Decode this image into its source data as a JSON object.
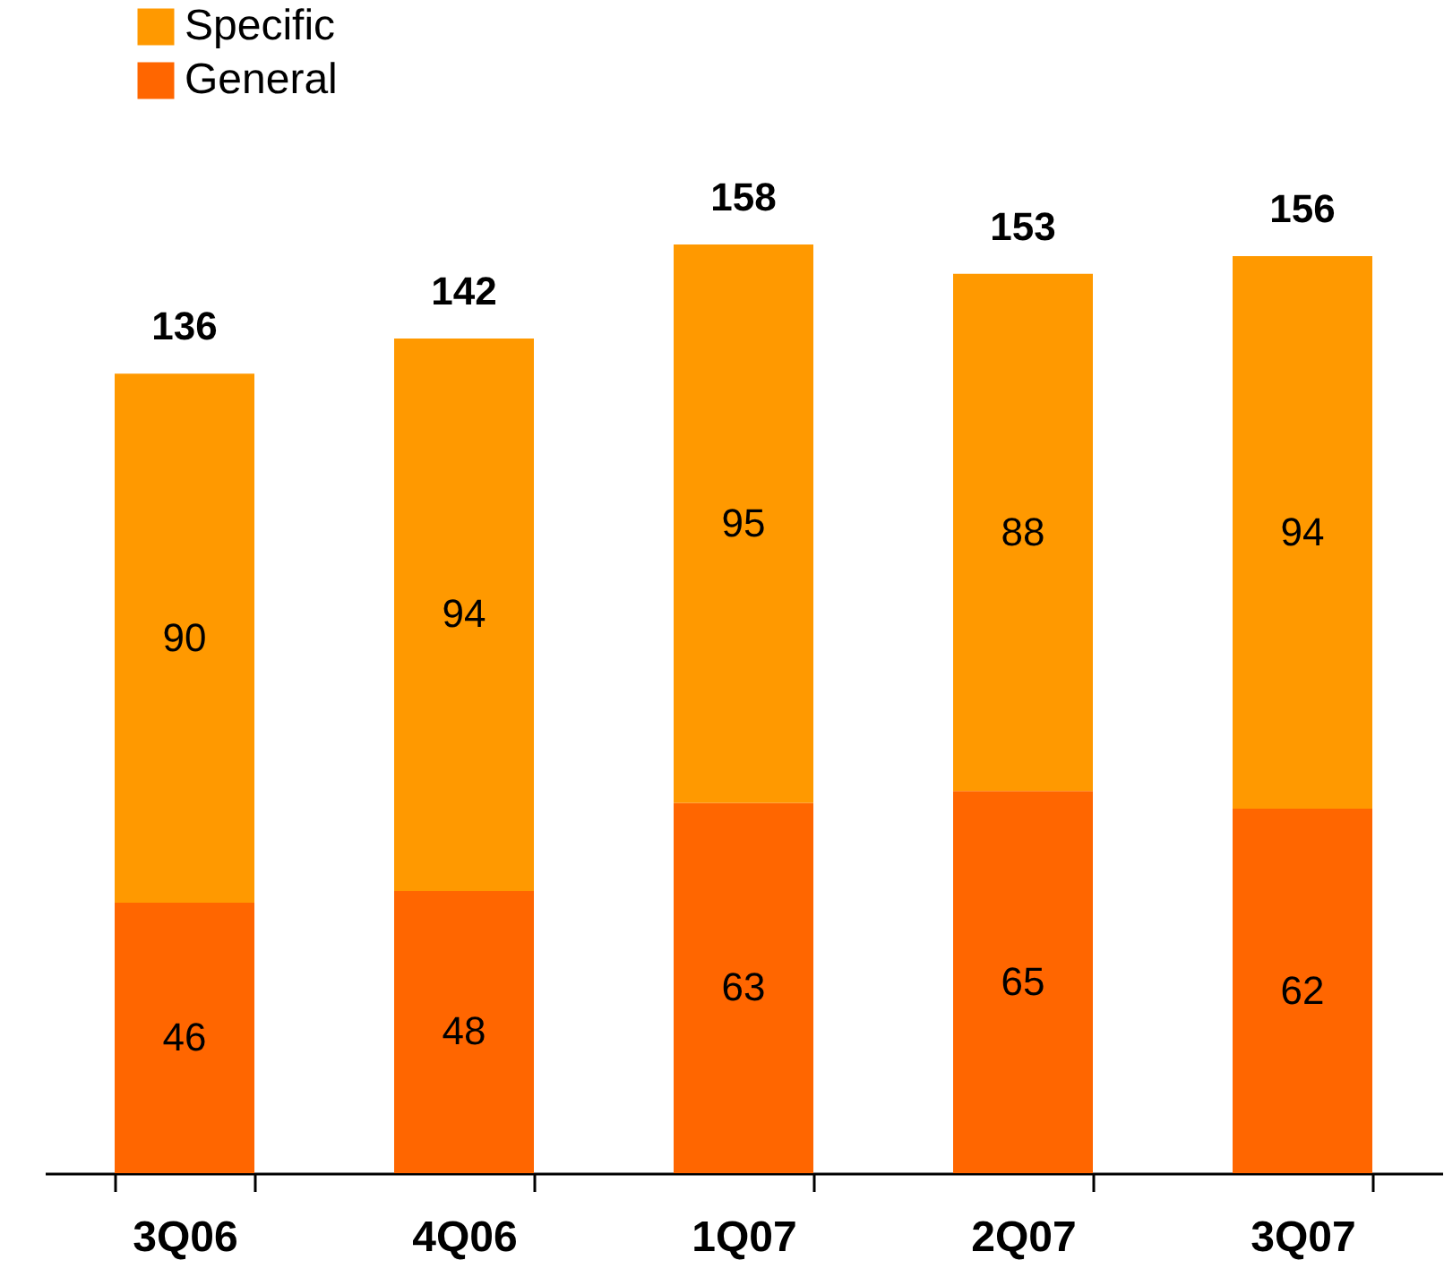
{
  "chart_data": {
    "type": "bar",
    "stacked": true,
    "categories": [
      "3Q06",
      "4Q06",
      "1Q07",
      "2Q07",
      "3Q07"
    ],
    "series": [
      {
        "name": "General",
        "color": "#ff6600",
        "values": [
          46,
          48,
          63,
          65,
          62
        ]
      },
      {
        "name": "Specific",
        "color": "#ff9900",
        "values": [
          90,
          94,
          95,
          88,
          94
        ]
      }
    ],
    "data_labels": true,
    "totals": [
      "136",
      "142",
      "158",
      "153",
      "156"
    ],
    "legend": "top left"
  }
}
